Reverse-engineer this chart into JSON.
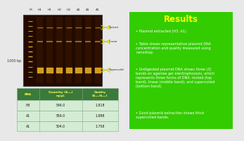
{
  "bg_color": "#e8e8e8",
  "right_panel_bg": "#33cc00",
  "right_panel_border": "#228800",
  "gel_bg_dark": "#2a1000",
  "gel_bg_mid": "#7a3800",
  "gel_band_bright": "#e8a800",
  "gel_band_mid": "#b87800",
  "gel_band_dim": "#886000",
  "lane_labels": [
    "M",
    "H1",
    "H1",
    "H2",
    "H2",
    "A1",
    "A1",
    "A1"
  ],
  "marker_bp": "1000 bp",
  "legend_items": [
    "Nicked",
    "Linear",
    "Supercoild"
  ],
  "legend_arrow_color": "#dddd00",
  "table_header_bg": "#3a7a3a",
  "table_header_color": "#ffff55",
  "table_row_bg": "#d4ecd4",
  "table_border_color": "#88aa88",
  "table_rows": [
    [
      "H3",
      "546.0",
      "1.818"
    ],
    [
      "A1",
      "556.0",
      "1.888"
    ],
    [
      "A1",
      "504.0",
      "1.758"
    ]
  ],
  "results_title": "Results",
  "results_title_color": "#ffff00",
  "results_text_color": "#ffffff",
  "results_highlight_color": "#ffff00",
  "bullet1": "Plasmid extracted (H3, A1)",
  "bullet2": "Table shows representative plasmid DNA\nconcentration and quality measured using\nnanodrop.",
  "bullet3_plain": "Undigested plasmid DNA shows three (3)\nbands on agarose gel electrophoresis, which\nrepresents ",
  "bullet3_hl": "three forms of DNA: nicked (top\nband), linear (middle band), and supercoiled\n(bottom band)",
  "bullet3_end": ".",
  "bullet4": "Good plasmid extraction shows thick\nsupercoiled bands."
}
